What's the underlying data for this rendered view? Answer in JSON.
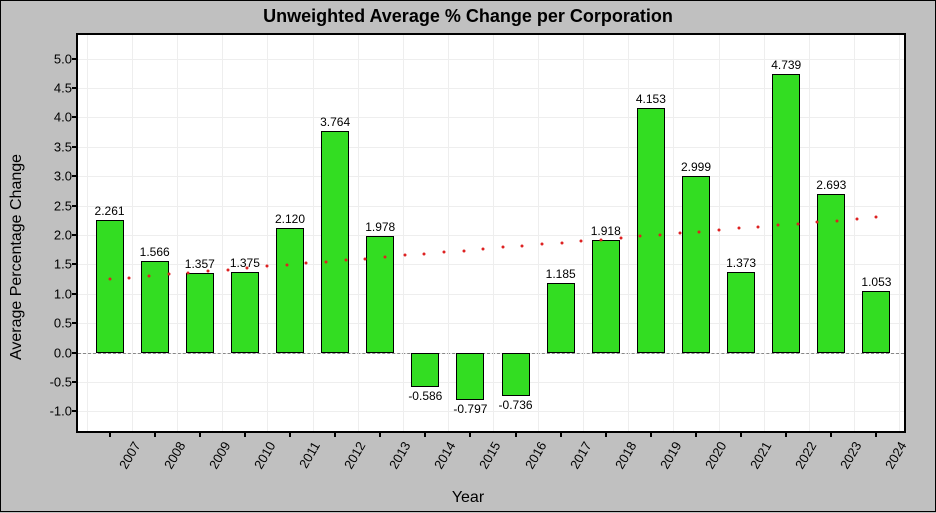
{
  "chart": {
    "type": "bar",
    "title": "Unweighted Average % Change per Corporation",
    "title_fontsize": 18,
    "xlabel": "Year",
    "ylabel": "Average Percentage Change",
    "label_fontsize": 16,
    "background_color": "#c0c0c0",
    "plot_background": "#ffffff",
    "grid_color": "#eeeeee",
    "bar_color": "#33dd22",
    "bar_border_color": "#000000",
    "bar_width": 0.62,
    "ylim": [
      -1.4,
      5.4
    ],
    "ytick_step": 0.5,
    "yticks": [
      -1.0,
      -0.5,
      0.0,
      0.5,
      1.0,
      1.5,
      2.0,
      2.5,
      3.0,
      3.5,
      4.0,
      4.5,
      5.0
    ],
    "categories": [
      "2007",
      "2008",
      "2009",
      "2010",
      "2011",
      "2012",
      "2013",
      "2014",
      "2015",
      "2016",
      "2017",
      "2018",
      "2019",
      "2020",
      "2021",
      "2022",
      "2023",
      "2024"
    ],
    "values": [
      2.261,
      1.566,
      1.357,
      1.375,
      2.12,
      3.764,
      1.978,
      -0.586,
      -0.797,
      -0.736,
      1.185,
      1.918,
      4.153,
      2.999,
      1.373,
      4.739,
      2.693,
      1.053
    ],
    "value_label_fontsize": 12,
    "tick_label_fontsize": 13,
    "trend": {
      "style": "dotted",
      "color": "#dd2222",
      "dot_size": 3,
      "dot_count": 40,
      "y_start": 1.25,
      "y_end": 2.3
    }
  }
}
